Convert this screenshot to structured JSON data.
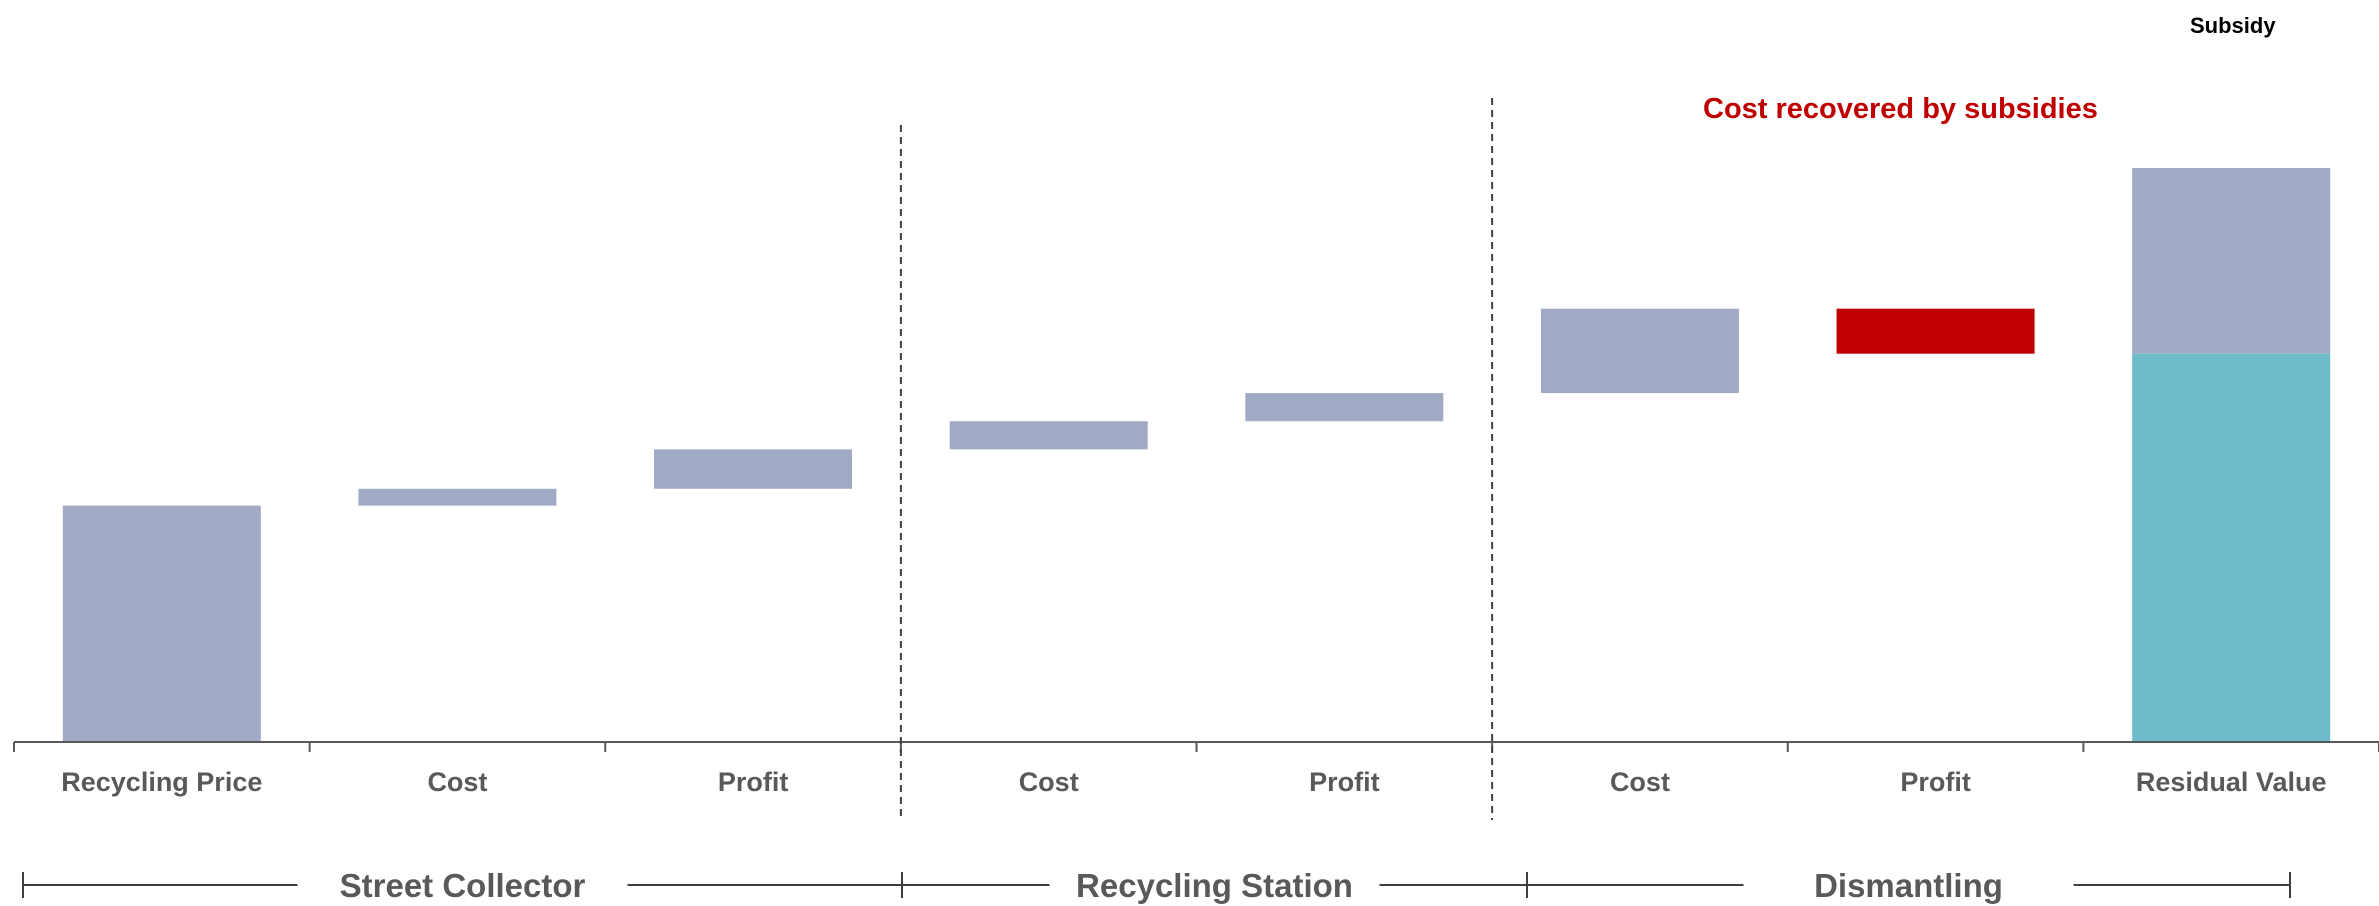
{
  "chart_data": {
    "type": "bar",
    "subtype": "waterfall",
    "categories": [
      "Recycling Price",
      "Cost",
      "Profit",
      "Cost",
      "Profit",
      "Cost",
      "Profit",
      "Residual Value"
    ],
    "groups": [
      {
        "label": "Street Collector",
        "categories": [
          0,
          1,
          2
        ]
      },
      {
        "label": "Recycling Station",
        "categories": [
          3,
          4
        ]
      },
      {
        "label": "Dismantling",
        "categories": [
          5,
          6,
          7
        ]
      }
    ],
    "bars": [
      {
        "start": 0,
        "end": 42,
        "color": "#a1aac4"
      },
      {
        "start": 42,
        "end": 45,
        "color": "#a1aac4"
      },
      {
        "start": 45,
        "end": 52,
        "color": "#a1aac4"
      },
      {
        "start": 52,
        "end": 57,
        "color": "#a1aac4"
      },
      {
        "start": 57,
        "end": 62,
        "color": "#a1aac4"
      },
      {
        "start": 62,
        "end": 77,
        "color": "#a1aac4"
      },
      {
        "start": 69,
        "end": 77,
        "color": "#c00000"
      },
      {
        "stack": [
          {
            "name": "Residual value",
            "start": 0,
            "end": 69,
            "color": "#6dbcca"
          },
          {
            "name": "Subsidy",
            "start": 69,
            "end": 102,
            "color": "#a1aac4"
          }
        ]
      }
    ],
    "ylim": [
      0,
      110
    ],
    "legend": {
      "label": "Subsidy",
      "position": "top-right"
    },
    "annotation": {
      "text": "Cost recovered by subsidies",
      "color": "#c00000"
    },
    "grid": false,
    "title": "",
    "xlabel": "",
    "ylabel": ""
  }
}
